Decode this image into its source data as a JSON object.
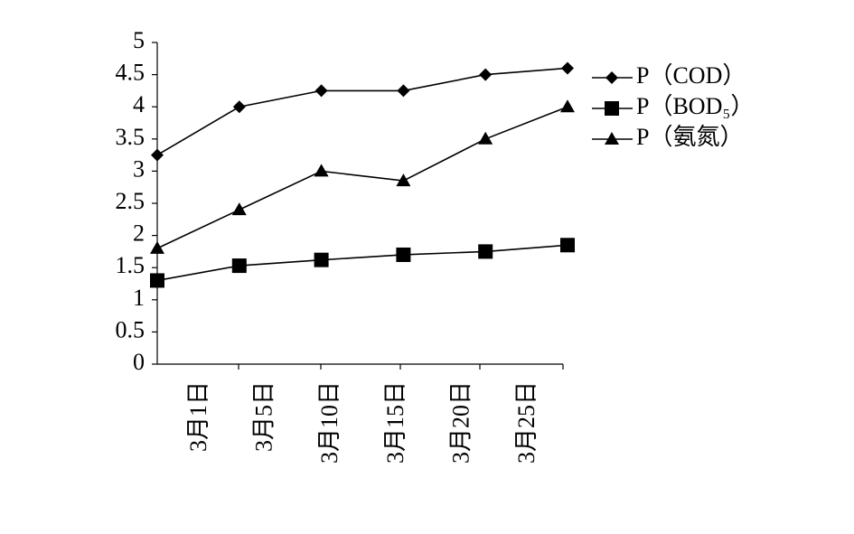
{
  "chart_data": {
    "type": "line",
    "categories": [
      "3月1日",
      "3月5日",
      "3月10日",
      "3月15日",
      "3月20日",
      "3月25日"
    ],
    "series": [
      {
        "name": "P（COD）",
        "color": "#000000",
        "marker": "diamond",
        "values": [
          3.25,
          4.0,
          4.25,
          4.25,
          4.5,
          4.6
        ]
      },
      {
        "name": "P（BOD₅）",
        "color": "#000000",
        "marker": "square",
        "values": [
          1.3,
          1.53,
          1.62,
          1.7,
          1.75,
          1.85
        ]
      },
      {
        "name": "P（氨氮）",
        "color": "#000000",
        "marker": "triangle",
        "values": [
          1.8,
          2.4,
          3.0,
          2.85,
          3.5,
          4.0
        ]
      }
    ],
    "ylim": [
      0,
      5
    ],
    "yticks": [
      0,
      0.5,
      1,
      1.5,
      2,
      2.5,
      3,
      3.5,
      4,
      4.5,
      5
    ],
    "grid": false,
    "legend": "right"
  }
}
